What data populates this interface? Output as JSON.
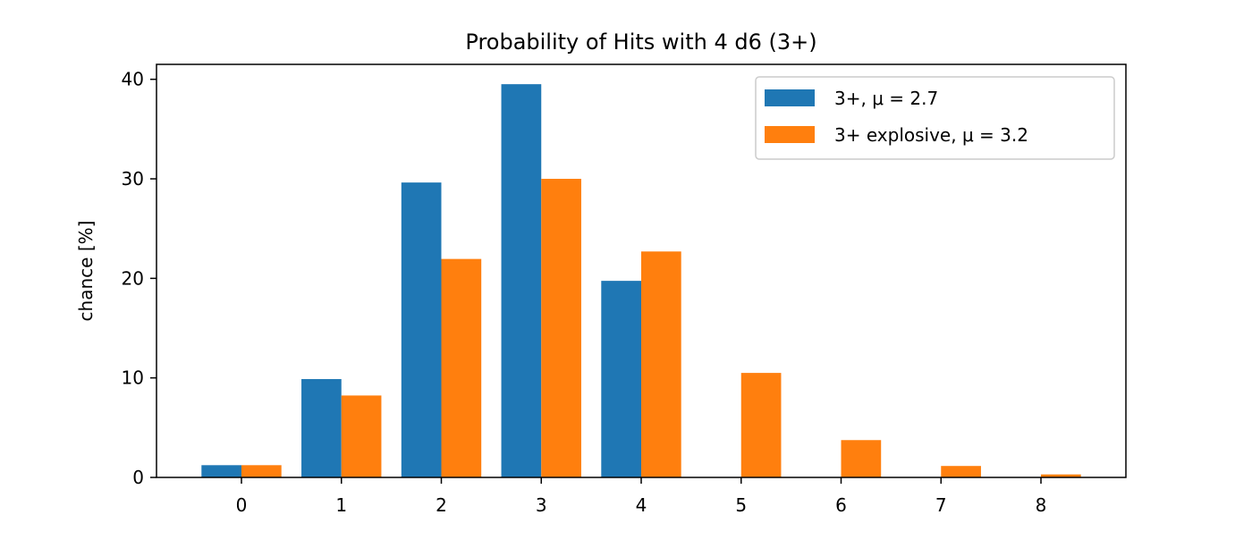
{
  "chart_data": {
    "type": "bar",
    "title": "Probability of Hits with 4 d6 (3+)",
    "xlabel": "",
    "ylabel": "chance [%]",
    "categories": [
      0,
      1,
      2,
      3,
      4,
      5,
      6,
      7,
      8
    ],
    "series": [
      {
        "name": "3+, μ = 2.7",
        "color": "#1f77b4",
        "values": [
          1.23,
          9.88,
          29.63,
          39.51,
          19.75,
          0,
          0,
          0,
          0
        ]
      },
      {
        "name": "3+ explosive, μ = 3.2",
        "color": "#ff7f0e",
        "values": [
          1.23,
          8.23,
          21.95,
          30.0,
          22.7,
          10.5,
          3.75,
          1.15,
          0.3
        ]
      }
    ],
    "ylim": [
      0,
      41.5
    ],
    "xlim": [
      -0.85,
      8.85
    ],
    "yticks": [
      0,
      10,
      20,
      30,
      40
    ],
    "xticks": [
      0,
      1,
      2,
      3,
      4,
      5,
      6,
      7,
      8
    ],
    "grid": false,
    "legend": "top-right"
  }
}
